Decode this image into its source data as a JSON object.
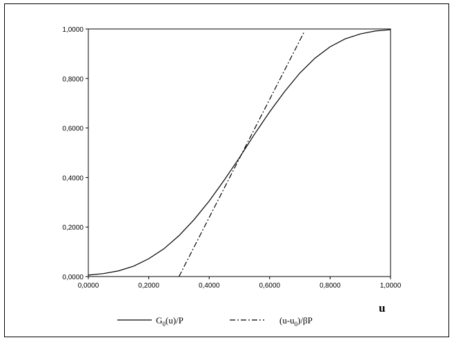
{
  "chart_data": {
    "type": "line",
    "title": "",
    "xlabel": "u",
    "ylabel": "",
    "xlim": [
      0,
      1
    ],
    "ylim": [
      0,
      1
    ],
    "grid": false,
    "legend_position": "bottom",
    "x_tick_labels": [
      "0,0000",
      "0,2000",
      "0,4000",
      "0,6000",
      "0,8000",
      "1,0000"
    ],
    "y_tick_labels": [
      "0,0000",
      "0,2000",
      "0,4000",
      "0,6000",
      "0,8000",
      "1,0000"
    ],
    "series": [
      {
        "name": "G0(u)/P",
        "legend": {
          "main": "G",
          "sub": "0",
          "rest": "(u)/P"
        },
        "style": "solid",
        "color": "#000000",
        "x": [
          0.0,
          0.05,
          0.1,
          0.15,
          0.2,
          0.25,
          0.3,
          0.35,
          0.4,
          0.45,
          0.5,
          0.55,
          0.6,
          0.65,
          0.7,
          0.75,
          0.8,
          0.85,
          0.9,
          0.95,
          1.0
        ],
        "y": [
          0.006,
          0.012,
          0.023,
          0.042,
          0.072,
          0.112,
          0.165,
          0.23,
          0.305,
          0.39,
          0.48,
          0.575,
          0.665,
          0.748,
          0.822,
          0.882,
          0.928,
          0.96,
          0.98,
          0.992,
          0.997
        ]
      },
      {
        "name": "(u-u0)/βP",
        "legend": {
          "main": "(u-u",
          "sub": "0",
          "rest": ")/βP"
        },
        "style": "dash-dot",
        "color": "#000000",
        "x": [
          0.3,
          0.715
        ],
        "y": [
          0.0,
          0.99
        ]
      }
    ]
  }
}
